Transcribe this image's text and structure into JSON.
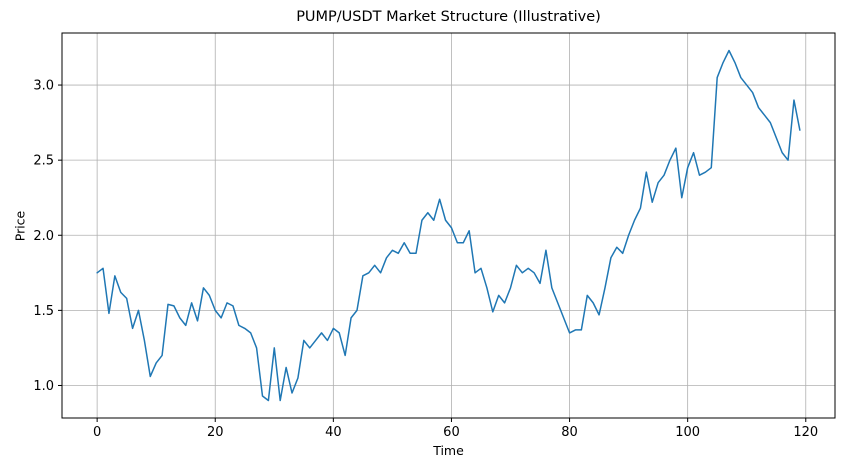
{
  "chart_data": {
    "type": "line",
    "title": "PUMP/USDT Market Structure (Illustrative)",
    "xlabel": "Time",
    "ylabel": "Price",
    "grid": true,
    "legend": "none",
    "background": "#ffffff",
    "line_color": "#1f77b4",
    "grid_color": "#b0b0b0",
    "spine_color": "#000000",
    "xlim_data": [
      0,
      119
    ],
    "ylim_data": [
      0.9,
      3.23
    ],
    "xticks": [
      0,
      20,
      40,
      60,
      80,
      100,
      120
    ],
    "xtick_labels": [
      "0",
      "20",
      "40",
      "60",
      "80",
      "100",
      "120"
    ],
    "yticks": [
      1.0,
      1.5,
      2.0,
      2.5,
      3.0
    ],
    "ytick_labels": [
      "1.0",
      "1.5",
      "2.0",
      "2.5",
      "3.0"
    ],
    "x": [
      0,
      1,
      2,
      3,
      4,
      5,
      6,
      7,
      8,
      9,
      10,
      11,
      12,
      13,
      14,
      15,
      16,
      17,
      18,
      19,
      20,
      21,
      22,
      23,
      24,
      25,
      26,
      27,
      28,
      29,
      30,
      31,
      32,
      33,
      34,
      35,
      36,
      37,
      38,
      39,
      40,
      41,
      42,
      43,
      44,
      45,
      46,
      47,
      48,
      49,
      50,
      51,
      52,
      53,
      54,
      55,
      56,
      57,
      58,
      59,
      60,
      61,
      62,
      63,
      64,
      65,
      66,
      67,
      68,
      69,
      70,
      71,
      72,
      73,
      74,
      75,
      76,
      77,
      78,
      79,
      80,
      81,
      82,
      83,
      84,
      85,
      86,
      87,
      88,
      89,
      90,
      91,
      92,
      93,
      94,
      95,
      96,
      97,
      98,
      99,
      100,
      101,
      102,
      103,
      104,
      105,
      106,
      107,
      108,
      109,
      110,
      111,
      112,
      113,
      114,
      115,
      116,
      117,
      118,
      119
    ],
    "y": [
      1.75,
      1.78,
      1.48,
      1.73,
      1.62,
      1.58,
      1.38,
      1.5,
      1.3,
      1.06,
      1.15,
      1.2,
      1.54,
      1.53,
      1.45,
      1.4,
      1.55,
      1.43,
      1.65,
      1.6,
      1.5,
      1.45,
      1.55,
      1.53,
      1.4,
      1.38,
      1.35,
      1.25,
      0.93,
      0.9,
      1.25,
      0.9,
      1.12,
      0.95,
      1.05,
      1.3,
      1.25,
      1.3,
      1.35,
      1.3,
      1.38,
      1.35,
      1.2,
      1.45,
      1.5,
      1.73,
      1.75,
      1.8,
      1.75,
      1.85,
      1.9,
      1.88,
      1.95,
      1.88,
      1.88,
      2.1,
      2.15,
      2.1,
      2.24,
      2.1,
      2.05,
      1.95,
      1.95,
      2.03,
      1.75,
      1.78,
      1.65,
      1.49,
      1.6,
      1.55,
      1.65,
      1.8,
      1.75,
      1.78,
      1.75,
      1.68,
      1.9,
      1.65,
      1.55,
      1.45,
      1.35,
      1.37,
      1.37,
      1.6,
      1.55,
      1.47,
      1.65,
      1.85,
      1.92,
      1.88,
      2.0,
      2.1,
      2.18,
      2.42,
      2.22,
      2.35,
      2.4,
      2.5,
      2.58,
      2.25,
      2.45,
      2.55,
      2.4,
      2.42,
      2.45,
      3.05,
      3.15,
      3.23,
      3.15,
      3.05,
      3.0,
      2.95,
      2.85,
      2.8,
      2.75,
      2.65,
      2.55,
      2.5,
      2.9,
      2.7
    ]
  }
}
